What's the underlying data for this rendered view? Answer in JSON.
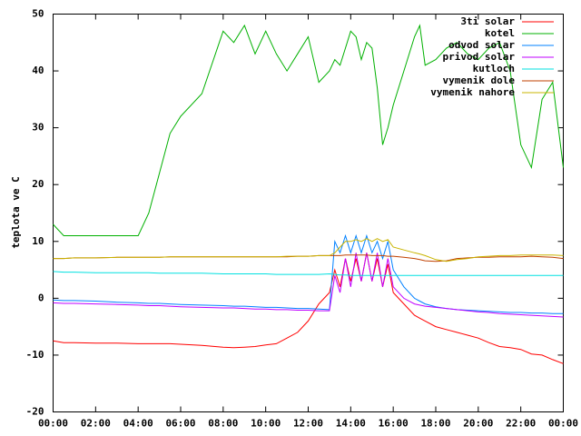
{
  "chart_data": {
    "type": "line",
    "y_label": "teplota ve C",
    "x": [
      0,
      0.5,
      1,
      2,
      3,
      4,
      4.5,
      5,
      5.5,
      6,
      7,
      8,
      8.5,
      9,
      9.5,
      10,
      10.5,
      11,
      11.5,
      12,
      12.5,
      13,
      13.25,
      13.5,
      13.75,
      14,
      14.25,
      14.5,
      14.75,
      15,
      15.25,
      15.5,
      15.75,
      16,
      16.5,
      17,
      17.25,
      17.5,
      18,
      18.5,
      19,
      19.5,
      20,
      20.5,
      21,
      21.5,
      22,
      22.5,
      23,
      23.5,
      24
    ],
    "series": [
      {
        "name": "3ti solar",
        "color": "#ff0000",
        "values": [
          -7.5,
          -7.8,
          -7.8,
          -7.9,
          -7.9,
          -8,
          -8,
          -8,
          -8,
          -8.1,
          -8.3,
          -8.6,
          -8.7,
          -8.6,
          -8.5,
          -8.2,
          -8,
          -7,
          -6,
          -4,
          -1,
          1,
          5,
          2,
          7,
          3,
          7,
          3,
          8,
          3,
          7,
          2,
          6,
          1,
          -1,
          -3,
          -3.5,
          -4,
          -5,
          -5.5,
          -6,
          -6.5,
          -7,
          -7.8,
          -8.5,
          -8.7,
          -9,
          -9.8,
          -10,
          -10.8,
          -11.5
        ]
      },
      {
        "name": "kotel",
        "color": "#00b000",
        "values": [
          13,
          11,
          11,
          11,
          11,
          11,
          15,
          22,
          29,
          32,
          36,
          47,
          45,
          48,
          43,
          47,
          43,
          40,
          43,
          46,
          38,
          40,
          42,
          41,
          44,
          47,
          46,
          42,
          45,
          44,
          37,
          27,
          30,
          34,
          40,
          46,
          48,
          41,
          42,
          44,
          45,
          43,
          42,
          44,
          45,
          40,
          27,
          23,
          35,
          38,
          23
        ]
      },
      {
        "name": "odvod solar",
        "color": "#0080ff",
        "values": [
          -0.3,
          -0.4,
          -0.4,
          -0.5,
          -0.7,
          -0.8,
          -0.9,
          -0.9,
          -1,
          -1.1,
          -1.2,
          -1.3,
          -1.4,
          -1.4,
          -1.5,
          -1.6,
          -1.6,
          -1.7,
          -1.8,
          -1.8,
          -1.9,
          -2,
          10,
          8,
          11,
          8,
          11,
          8,
          11,
          8,
          10,
          7,
          10,
          5,
          2,
          0,
          -0.5,
          -1,
          -1.5,
          -1.8,
          -2,
          -2.1,
          -2.2,
          -2.3,
          -2.4,
          -2.5,
          -2.5,
          -2.6,
          -2.6,
          -2.7,
          -2.7
        ]
      },
      {
        "name": "privod solar",
        "color": "#c000ff",
        "values": [
          -0.8,
          -0.9,
          -0.9,
          -1,
          -1.1,
          -1.2,
          -1.3,
          -1.3,
          -1.4,
          -1.5,
          -1.6,
          -1.7,
          -1.7,
          -1.8,
          -1.9,
          -1.9,
          -2,
          -2,
          -2.1,
          -2.1,
          -2.2,
          -2.2,
          4,
          1,
          7,
          2,
          8,
          3,
          8,
          3,
          8,
          2,
          7,
          2,
          0,
          -1,
          -1.2,
          -1.4,
          -1.6,
          -1.8,
          -2,
          -2.2,
          -2.4,
          -2.5,
          -2.7,
          -2.8,
          -2.9,
          -3,
          -3.1,
          -3.2,
          -3.3
        ]
      },
      {
        "name": "kutloch",
        "color": "#00e0e0",
        "values": [
          4.7,
          4.6,
          4.6,
          4.5,
          4.5,
          4.5,
          4.5,
          4.4,
          4.4,
          4.4,
          4.4,
          4.3,
          4.3,
          4.3,
          4.3,
          4.3,
          4.2,
          4.2,
          4.2,
          4.2,
          4.2,
          4.3,
          4.2,
          4.1,
          4.1,
          4,
          4,
          4,
          4,
          4,
          4,
          4,
          4,
          4,
          4,
          4,
          4,
          4,
          4,
          4,
          4,
          4,
          4,
          4,
          4,
          4,
          4,
          4,
          4,
          4,
          4
        ]
      },
      {
        "name": "vymenik dole",
        "color": "#c04000",
        "values": [
          7,
          7,
          7.1,
          7.1,
          7.2,
          7.2,
          7.2,
          7.2,
          7.3,
          7.3,
          7.3,
          7.3,
          7.3,
          7.3,
          7.3,
          7.3,
          7.3,
          7.3,
          7.4,
          7.4,
          7.5,
          7.5,
          7.5,
          7.5,
          7.6,
          7.6,
          7.6,
          7.6,
          7.6,
          7.5,
          7.5,
          7.5,
          7.4,
          7.4,
          7.2,
          7,
          6.8,
          6.6,
          6.5,
          6.6,
          7,
          7.1,
          7.2,
          7.2,
          7.3,
          7.3,
          7.3,
          7.4,
          7.3,
          7.2,
          7
        ]
      },
      {
        "name": "vymenik nahore",
        "color": "#c8b400",
        "values": [
          7,
          7,
          7.1,
          7.1,
          7.2,
          7.2,
          7.2,
          7.2,
          7.3,
          7.3,
          7.3,
          7.3,
          7.3,
          7.3,
          7.3,
          7.3,
          7.3,
          7.4,
          7.4,
          7.4,
          7.5,
          7.5,
          8,
          9,
          10,
          10,
          10.3,
          10,
          10.5,
          10,
          10.5,
          10,
          10.3,
          9,
          8.5,
          8,
          7.8,
          7.5,
          6.8,
          6.5,
          6.8,
          7,
          7.3,
          7.4,
          7.5,
          7.5,
          7.6,
          7.6,
          7.6,
          7.6,
          7.5
        ]
      }
    ],
    "xlim": [
      0,
      24
    ],
    "xticks": [
      {
        "value": 0,
        "label": "00:00"
      },
      {
        "value": 2,
        "label": "02:00"
      },
      {
        "value": 4,
        "label": "04:00"
      },
      {
        "value": 6,
        "label": "06:00"
      },
      {
        "value": 8,
        "label": "08:00"
      },
      {
        "value": 10,
        "label": "10:00"
      },
      {
        "value": 12,
        "label": "12:00"
      },
      {
        "value": 14,
        "label": "14:00"
      },
      {
        "value": 16,
        "label": "16:00"
      },
      {
        "value": 18,
        "label": "18:00"
      },
      {
        "value": 20,
        "label": "20:00"
      },
      {
        "value": 22,
        "label": "22:00"
      },
      {
        "value": 24,
        "label": "00:00"
      }
    ],
    "ylim": [
      -20,
      50
    ],
    "yticks": [
      -20,
      -10,
      0,
      10,
      20,
      30,
      40,
      50
    ],
    "grid": false,
    "legend": "top-right"
  }
}
